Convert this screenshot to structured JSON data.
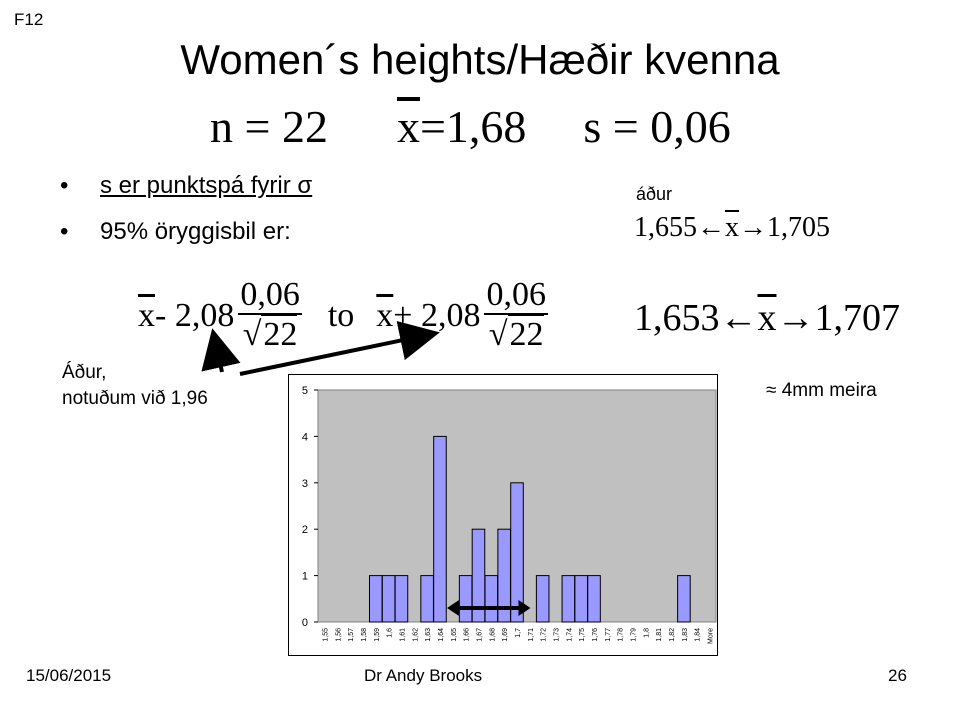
{
  "slide": {
    "label": "F12",
    "title": "Women´s heights/Hæðir kvenna"
  },
  "stats": {
    "n_label": "n = 22",
    "xbar_symbol": "x",
    "xbar_value": "=1,68",
    "s_label": "s = 0,06"
  },
  "bullets": [
    {
      "bullet": "•",
      "text": "s er punktspá fyrir σ"
    },
    {
      "bullet": "•",
      "text": "95% öryggisbil er:"
    }
  ],
  "formula": {
    "left_x": "x",
    "left_op": " - 2,08",
    "num": "0,06",
    "den": "22",
    "sqrt_sign": "√",
    "to": "to",
    "right_x": "x",
    "right_op": " + 2,08"
  },
  "ci_before": {
    "label": "áður",
    "lower": "1,655",
    "x": "x",
    "upper": "1,705",
    "left_arrow": "←",
    "right_arrow": "→"
  },
  "ci_new": {
    "lower": "1,653",
    "x": "x",
    "upper": "1,707",
    "left_arrow": "←",
    "right_arrow": "→"
  },
  "notes": {
    "line1": "Áður,",
    "line2": "notuðum við 1,96",
    "diff": "≈ 4mm meira"
  },
  "footer": {
    "date": "15/06/2015",
    "author": "Dr Andy Brooks",
    "page": "26"
  },
  "colors": {
    "bar_fill": "#9999FF",
    "plot_bg": "#C0C0C0",
    "arrow": "#000000"
  },
  "chart_data": {
    "type": "bar",
    "categories": [
      "1,55",
      "1,56",
      "1,57",
      "1,58",
      "1,59",
      "1,6",
      "1,61",
      "1,62",
      "1,63",
      "1,64",
      "1,65",
      "1,66",
      "1,67",
      "1,68",
      "1,69",
      "1,7",
      "1,71",
      "1,72",
      "1,73",
      "1,74",
      "1,75",
      "1,76",
      "1,77",
      "1,78",
      "1,79",
      "1,8",
      "1,81",
      "1,82",
      "1,83",
      "1,84",
      "More"
    ],
    "values": [
      0,
      0,
      0,
      0,
      1,
      1,
      1,
      0,
      1,
      4,
      0,
      1,
      2,
      1,
      2,
      3,
      0,
      1,
      0,
      1,
      1,
      1,
      0,
      0,
      0,
      0,
      0,
      0,
      1,
      0,
      0
    ],
    "yticks": [
      "0",
      "1",
      "2",
      "3",
      "4",
      "5"
    ],
    "ylim": [
      0,
      5
    ],
    "grid": false,
    "legend": "none",
    "title": "",
    "xlabel": "",
    "ylabel": "",
    "interval_arrow": {
      "from": "1,65",
      "to": "1,71"
    }
  }
}
